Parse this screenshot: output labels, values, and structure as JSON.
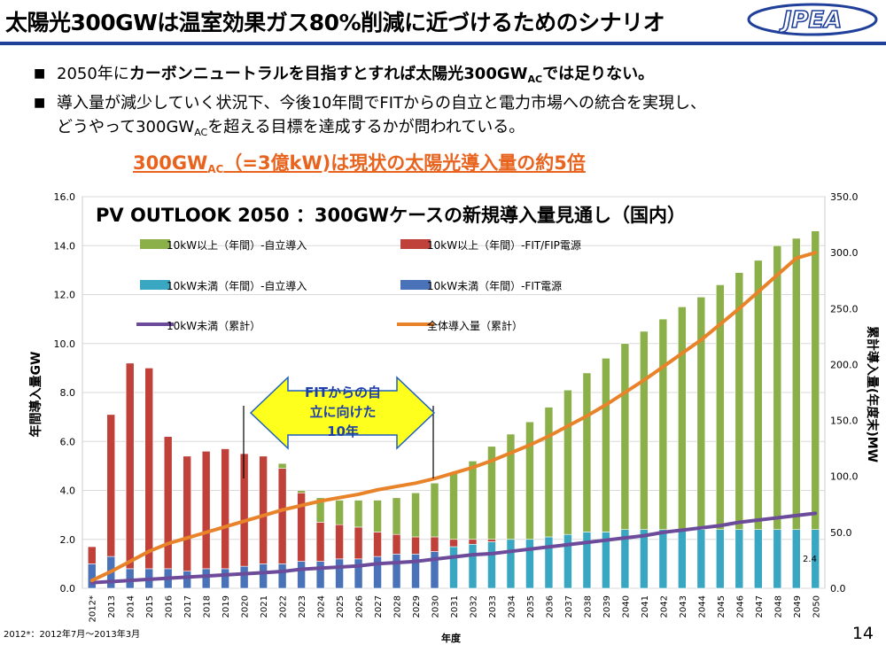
{
  "header": {
    "title": "太陽光300GWは温室効果ガス80%削減に近づけるためのシナリオ",
    "logo_text": "JPEA"
  },
  "bullets": [
    {
      "pre": "2050年に",
      "bold": "カーボンニュートラルを目指すとすれば太陽光300GW",
      "sub": "AC",
      "post": "では足りない。"
    },
    {
      "line1": "導入量が減少していく状況下、今後10年間でFITからの自立と電力市場への統合を実現し、",
      "line2a": "どうやって300GW",
      "sub": "AC",
      "line2b": "を超える目標を達成するかが問われている。"
    }
  ],
  "highlight": {
    "a": "300GW",
    "sub": "AC",
    "b": "（=3億kW)は現状の太陽光導入量の約5倍"
  },
  "callout": {
    "line1": "FITからの自",
    "line2": "立に向けた",
    "line3": "10年"
  },
  "footnote": "2012*：2012年7月～2013年3月",
  "page_number": "14",
  "chart_data": {
    "type": "bar",
    "title": "PV OUTLOOK 2050 ：300GWケースの新規導入量見通し（国内）",
    "xlabel": "年度",
    "ylabel": "年間導入量GW",
    "y2label": "累計導入量(年度末)MW",
    "ylim": [
      0,
      16
    ],
    "y2lim": [
      0,
      350
    ],
    "yticks": [
      "0.0",
      "2.0",
      "4.0",
      "6.0",
      "8.0",
      "10.0",
      "12.0",
      "14.0",
      "16.0"
    ],
    "y2ticks": [
      "0.0",
      "50.0",
      "100.0",
      "150.0",
      "200.0",
      "250.0",
      "300.0",
      "350.0"
    ],
    "categories": [
      "2012*",
      "2013",
      "2014",
      "2015",
      "2016",
      "2017",
      "2018",
      "2019",
      "2020",
      "2021",
      "2022",
      "2023",
      "2024",
      "2025",
      "2026",
      "2027",
      "2028",
      "2029",
      "2030",
      "2031",
      "2032",
      "2033",
      "2034",
      "2035",
      "2036",
      "2037",
      "2038",
      "2039",
      "2040",
      "2041",
      "2042",
      "2043",
      "2044",
      "2045",
      "2046",
      "2047",
      "2048",
      "2049",
      "2050"
    ],
    "series": [
      {
        "name": "10kW未満（年間）-FIT電源",
        "color": "#4a72b8",
        "kind": "bar",
        "values": [
          1.0,
          1.3,
          0.8,
          0.8,
          0.8,
          0.7,
          0.8,
          0.8,
          0.9,
          1.0,
          1.0,
          1.1,
          1.1,
          1.2,
          1.2,
          1.3,
          1.4,
          1.4,
          1.5,
          0,
          0,
          0,
          0,
          0,
          0,
          0,
          0,
          0,
          0,
          0,
          0,
          0,
          0,
          0,
          0,
          0,
          0,
          0,
          0
        ]
      },
      {
        "name": "10kW未満（年間）-自立導入",
        "color": "#3aa7c2",
        "kind": "bar",
        "values": [
          0,
          0,
          0,
          0,
          0,
          0,
          0,
          0,
          0,
          0,
          0,
          0,
          0,
          0,
          0,
          0,
          0,
          0,
          0,
          1.7,
          1.8,
          1.9,
          2.0,
          2.0,
          2.1,
          2.2,
          2.3,
          2.3,
          2.4,
          2.4,
          2.4,
          2.4,
          2.4,
          2.4,
          2.4,
          2.4,
          2.4,
          2.4,
          2.4
        ]
      },
      {
        "name": "10kW以上（年間）-FIT/FIP電源",
        "color": "#c0403a",
        "kind": "bar",
        "values": [
          0.7,
          5.8,
          8.4,
          8.2,
          5.4,
          4.7,
          4.8,
          4.9,
          4.6,
          4.4,
          3.9,
          2.8,
          1.6,
          1.4,
          1.3,
          1.0,
          0.8,
          0.7,
          0.6,
          0.3,
          0.2,
          0.1,
          0,
          0,
          0,
          0,
          0,
          0,
          0,
          0,
          0,
          0,
          0,
          0,
          0,
          0,
          0,
          0,
          0
        ]
      },
      {
        "name": "10kW以上（年間）-自立導入",
        "color": "#8bb04a",
        "kind": "bar",
        "values": [
          0,
          0,
          0,
          0,
          0,
          0,
          0,
          0,
          0,
          0,
          0.2,
          0.1,
          1.0,
          1.0,
          1.1,
          1.3,
          1.5,
          1.8,
          2.2,
          2.7,
          3.2,
          3.8,
          4.3,
          4.8,
          5.3,
          5.9,
          6.5,
          7.1,
          7.6,
          8.1,
          8.6,
          9.1,
          9.5,
          10.0,
          10.5,
          11.0,
          11.6,
          11.9,
          12.2
        ]
      },
      {
        "name": "10kW未満（累計）",
        "color": "#6b4b9a",
        "kind": "line",
        "values": [
          5,
          6,
          7,
          8,
          9,
          10,
          11,
          12,
          13,
          14,
          15,
          17,
          18,
          19,
          20,
          22,
          23,
          24,
          26,
          28,
          30,
          31,
          33,
          35,
          37,
          39,
          41,
          43,
          45,
          47,
          50,
          52,
          54,
          56,
          59,
          61,
          63,
          65,
          67
        ]
      },
      {
        "name": "全体導入量（累計）",
        "color": "#e8832a",
        "kind": "line",
        "values": [
          7,
          15,
          24,
          33,
          40,
          45,
          50,
          55,
          60,
          65,
          70,
          74,
          78,
          81,
          84,
          88,
          91,
          94,
          98,
          103,
          108,
          114,
          121,
          128,
          136,
          145,
          154,
          164,
          175,
          186,
          198,
          210,
          222,
          236,
          250,
          265,
          280,
          295,
          300
        ]
      }
    ],
    "annotations": [
      {
        "text": "2.4",
        "category": "2050"
      }
    ],
    "legend": "top-inside"
  }
}
